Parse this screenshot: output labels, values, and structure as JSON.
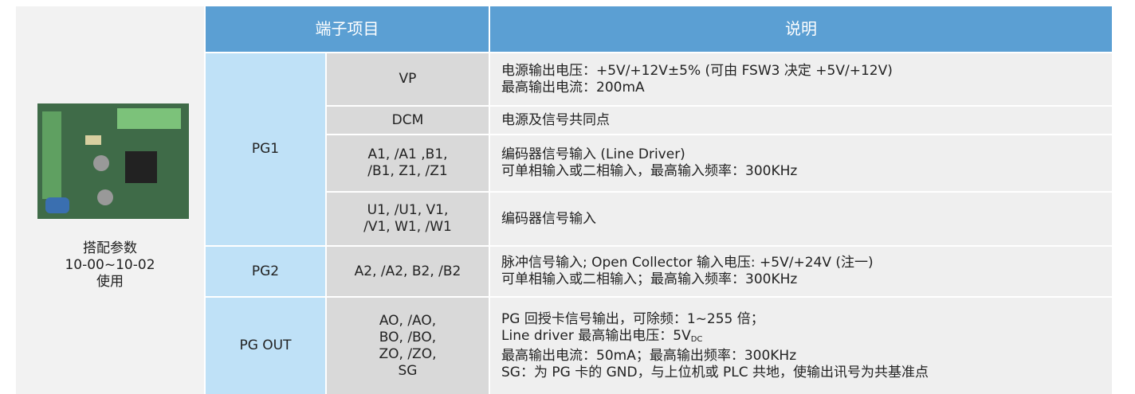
{
  "side": {
    "lines": [
      "搭配参数",
      "10-00~10-02",
      "使用"
    ]
  },
  "table": {
    "header": [
      "端子项目",
      "说明"
    ],
    "groups": [
      {
        "name": "PG1",
        "rows": [
          {
            "terminal": [
              "VP"
            ],
            "description": [
              [
                "电源输出电压：+5V/+12V±5% (可由 FSW3 决定 +5V/+12V)"
              ],
              [
                "最高输出电流：200mA"
              ]
            ]
          },
          {
            "terminal": [
              "DCM"
            ],
            "description": [
              [
                "电源及信号共同点"
              ]
            ]
          },
          {
            "terminal": [
              "A1, /A1 ,B1,",
              "/B1, Z1, /Z1"
            ],
            "description": [
              [
                "编码器信号输入 (Line Driver)"
              ],
              [
                "可单相输入或二相输入，最高输入频率：300KHz"
              ]
            ]
          },
          {
            "terminal": [
              "U1, /U1, V1,",
              "/V1, W1, /W1"
            ],
            "description": [
              [
                "编码器信号输入"
              ]
            ]
          }
        ]
      },
      {
        "name": "PG2",
        "rows": [
          {
            "terminal": [
              "A2, /A2, B2, /B2"
            ],
            "description": [
              [
                "脉冲信号输入; Open Collector 输入电压: +5V/+24V (注一)"
              ],
              [
                "可单相输入或二相输入；最高输入频率：300KHz"
              ]
            ]
          }
        ]
      },
      {
        "name": "PG OUT",
        "rows": [
          {
            "terminal": [
              "AO, /AO,",
              "BO, /BO,",
              "ZO, /ZO,",
              "SG"
            ],
            "description": [
              [
                "PG 回授卡信号输出，可除频：1~255 倍；"
              ],
              [
                "Line driver 最高输出电压：5V",
                "DC"
              ],
              [
                "最高输出电流：50mA；最高输出频率：300KHz"
              ],
              [
                "SG：为 PG 卡的 GND，与上位机或 PLC 共地，使输出讯号为共基准点"
              ]
            ]
          }
        ]
      }
    ]
  }
}
